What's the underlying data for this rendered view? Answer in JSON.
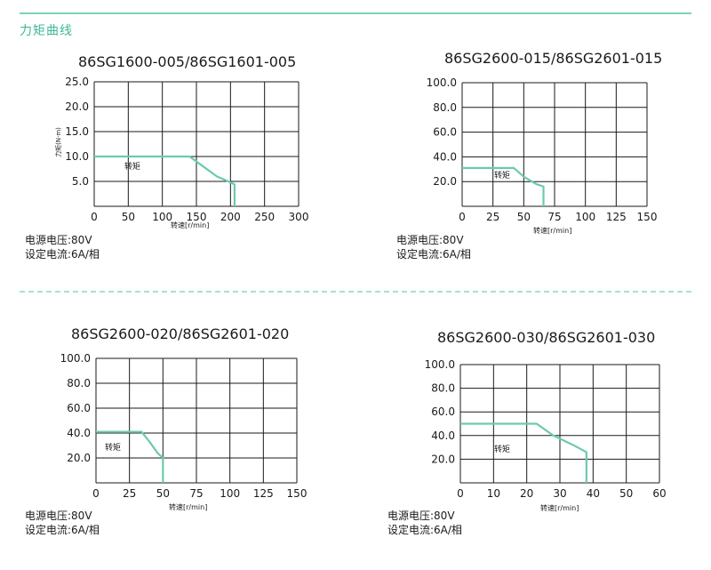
{
  "section_title": "力矩曲线",
  "charts": [
    {
      "type": "line",
      "title": "86SG1600-005/86SG1601-005",
      "xlabel": "转速[r/min]",
      "ylabel": "力矩(N·m)",
      "xlim": [
        0,
        300
      ],
      "ylim": [
        0,
        25
      ],
      "x_ticks": [
        "0",
        "50",
        "100",
        "150",
        "200",
        "250",
        "300"
      ],
      "y_ticks": [
        "5.0",
        "10.0",
        "15.0",
        "20.0",
        "25.0"
      ],
      "series": [
        {
          "name": "转矩",
          "x": [
            0,
            140,
            160,
            180,
            200,
            206,
            206
          ],
          "y": [
            10,
            10,
            8,
            6,
            4.8,
            4.4,
            0
          ]
        }
      ],
      "curve_label": "转矩",
      "notes": [
        "电源电压:80V",
        "设定电流:6A/相"
      ]
    },
    {
      "type": "line",
      "title": "86SG2600-015/86SG2601-015",
      "xlabel": "转速[r/min]",
      "ylabel": "",
      "xlim": [
        0,
        150
      ],
      "ylim": [
        0,
        100
      ],
      "x_ticks": [
        "0",
        "25",
        "50",
        "75",
        "100",
        "125",
        "150"
      ],
      "y_ticks": [
        "20.0",
        "40.0",
        "60.0",
        "80.0",
        "100.0"
      ],
      "series": [
        {
          "name": "转矩",
          "x": [
            0,
            42,
            50,
            60,
            66,
            66
          ],
          "y": [
            31,
            31,
            24,
            18,
            16,
            0
          ]
        }
      ],
      "curve_label": "转矩",
      "notes": [
        "电源电压:80V",
        "设定电流:6A/相"
      ]
    },
    {
      "type": "line",
      "title": "86SG2600-020/86SG2601-020",
      "xlabel": "转速[r/min]",
      "ylabel": "",
      "xlim": [
        0,
        150
      ],
      "ylim": [
        0,
        100
      ],
      "x_ticks": [
        "0",
        "25",
        "50",
        "75",
        "100",
        "125",
        "150"
      ],
      "y_ticks": [
        "20.0",
        "40.0",
        "60.0",
        "80.0",
        "100.0"
      ],
      "series": [
        {
          "name": "转矩",
          "x": [
            0,
            34,
            40,
            46,
            50,
            50
          ],
          "y": [
            41,
            41,
            33,
            24,
            20,
            0
          ]
        }
      ],
      "curve_label": "转矩",
      "notes": [
        "电源电压:80V",
        "设定电流:6A/相"
      ]
    },
    {
      "type": "line",
      "title": "86SG2600-030/86SG2601-030",
      "xlabel": "转速[r/min]",
      "ylabel": "",
      "xlim": [
        0,
        60
      ],
      "ylim": [
        0,
        100
      ],
      "x_ticks": [
        "0",
        "10",
        "20",
        "30",
        "40",
        "50",
        "60"
      ],
      "y_ticks": [
        "20.0",
        "40.0",
        "60.0",
        "80.0",
        "100.0"
      ],
      "series": [
        {
          "name": "转矩",
          "x": [
            0,
            23,
            28,
            34,
            38,
            38
          ],
          "y": [
            50,
            50,
            40,
            32,
            26,
            0
          ]
        }
      ],
      "curve_label": "转矩",
      "notes": [
        "电源电压:80V",
        "设定电流:6A/相"
      ]
    }
  ],
  "colors": {
    "accent": "#3fb89a",
    "curve": "#6cc9b1",
    "grid": "#1a1a1a"
  }
}
